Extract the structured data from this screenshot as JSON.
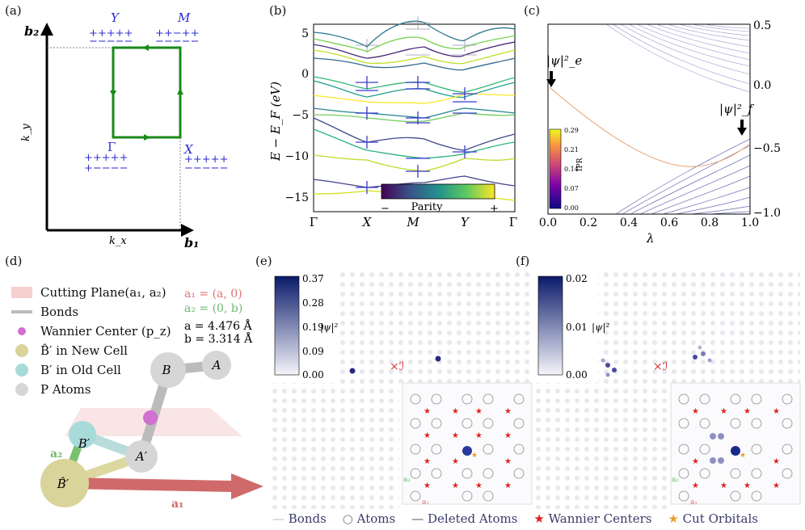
{
  "panel_labels": {
    "a": "(a)",
    "b": "(b)",
    "c": "(c)",
    "d": "(d)",
    "e": "(e)",
    "f": "(f)"
  },
  "panel_a": {
    "axis_b2": "b₂",
    "axis_b1": "b₁",
    "axis_ky": "k_y",
    "axis_kx": "k_x",
    "pt_Y": "Y",
    "pt_M": "M",
    "pt_Gamma": "Γ",
    "pt_X": "X",
    "parity_plus": "+++++",
    "parity_minus": "−−−−−",
    "parity_mixed_top": "++−++",
    "parity_mixed_bottom": "+−−−−",
    "path_color": "#1a8a1a",
    "label_color": "#2a2ad0"
  },
  "panel_b": {
    "ylabel": "E − E_F (eV)",
    "yticks": [
      "5",
      "0",
      "−5",
      "−10",
      "−15"
    ],
    "xticks": [
      "Γ",
      "X",
      "M",
      "Y",
      "Γ"
    ],
    "colorbar_label": "Parity",
    "cb_minus": "−",
    "cb_plus": "+"
  },
  "panel_c": {
    "xlabel": "λ",
    "xticks": [
      "0.0",
      "0.2",
      "0.4",
      "0.6",
      "0.8",
      "1.0"
    ],
    "yticks": [
      "0.5",
      "0.0",
      "−0.5",
      "−1.0"
    ],
    "cb_label": "IPR",
    "cb_ticks": [
      "0.29",
      "0.21",
      "0.14",
      "0.07",
      "0.00"
    ],
    "psi_e": "|ψ|²_e",
    "psi_f": "|ψ|²_f"
  },
  "panel_d": {
    "legend": [
      "Cutting Plane(a₁, a₂)",
      "Bonds",
      "Wannier Center (p_z)",
      "B̂′ in New Cell",
      "B′ in Old Cell",
      "P Atoms"
    ],
    "a1_def": "a₁ = (a, 0)",
    "a2_def": "a₂ = (0, b)",
    "a_val": "a = 4.476 Å",
    "b_val": "b = 3.314 Å",
    "atoms": {
      "B": "B",
      "A": "A",
      "Bp": "B′",
      "Ap": "A′",
      "Bhat": "B̂′"
    },
    "vec_a1": "a₁",
    "vec_a2": "a₂"
  },
  "panel_e": {
    "cb_ticks": [
      "0.37",
      "0.28",
      "0.19",
      "0.09",
      "0.00"
    ],
    "cb_label": "|ψ|²",
    "inv_label": "×ℐ",
    "a1": "a₁",
    "a2": "a₂"
  },
  "panel_f": {
    "cb_ticks": [
      "0.02",
      "0.01",
      "0.00"
    ],
    "cb_label": "|ψ|²",
    "inv_label": "×ℐ",
    "a1": "a₁",
    "a2": "a₂"
  },
  "bottom_legend": {
    "bonds": "Bonds",
    "atoms": "Atoms",
    "deleted": "Deleted Atoms",
    "wannier": "Wannier Centers",
    "cut": "Cut Orbitals"
  }
}
